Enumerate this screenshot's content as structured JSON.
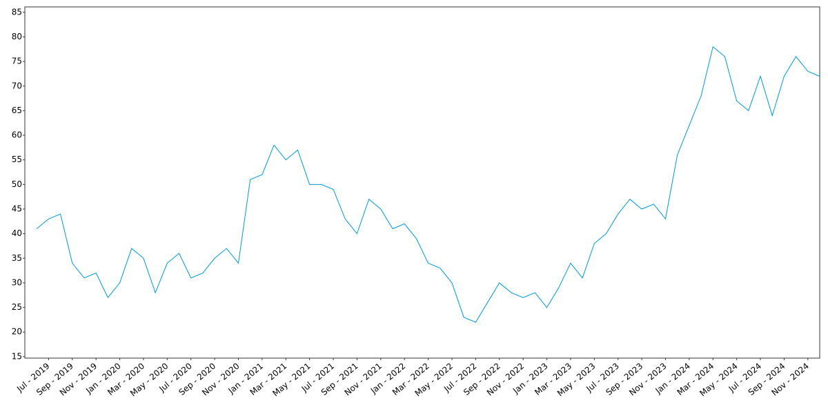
{
  "chart_data": {
    "type": "line",
    "x": [
      "2019-06",
      "2019-07",
      "2019-08",
      "2019-09",
      "2019-10",
      "2019-11",
      "2019-12",
      "2020-01",
      "2020-02",
      "2020-03",
      "2020-04",
      "2020-05",
      "2020-06",
      "2020-07",
      "2020-08",
      "2020-09",
      "2020-10",
      "2020-11",
      "2020-12",
      "2021-01",
      "2021-02",
      "2021-03",
      "2021-04",
      "2021-05",
      "2021-06",
      "2021-07",
      "2021-08",
      "2021-09",
      "2021-10",
      "2021-11",
      "2021-12",
      "2022-01",
      "2022-02",
      "2022-03",
      "2022-04",
      "2022-05",
      "2022-06",
      "2022-07",
      "2022-08",
      "2022-09",
      "2022-10",
      "2022-11",
      "2022-12",
      "2023-01",
      "2023-02",
      "2023-03",
      "2023-04",
      "2023-05",
      "2023-06",
      "2023-07",
      "2023-08",
      "2023-09",
      "2023-10",
      "2023-11",
      "2023-12",
      "2024-01",
      "2024-02",
      "2024-03",
      "2024-04",
      "2024-05",
      "2024-06",
      "2024-07",
      "2024-08",
      "2024-09",
      "2024-10",
      "2024-11",
      "2024-12"
    ],
    "series": [
      {
        "color": "#0096d6",
        "values": [
          41,
          43,
          44,
          34,
          31,
          32,
          27,
          30,
          37,
          35,
          28,
          34,
          36,
          31,
          32,
          35,
          37,
          34,
          51,
          52,
          58,
          55,
          57,
          50,
          50,
          49,
          43,
          40,
          47,
          45,
          41,
          42,
          39,
          34,
          33,
          30,
          23,
          22,
          26,
          30,
          28,
          27,
          28,
          25,
          29,
          34,
          31,
          38,
          40,
          44,
          47,
          45,
          46,
          43,
          56,
          62,
          68,
          78,
          76,
          67,
          65,
          72,
          64,
          72,
          76,
          73,
          72
        ]
      }
    ],
    "xlim": [
      "2019-05",
      "2024-12"
    ],
    "xticks": [
      {
        "value": "2019-07",
        "label": "Jul - 2019"
      },
      {
        "value": "2019-09",
        "label": "Sep - 2019"
      },
      {
        "value": "2019-11",
        "label": "Nov - 2019"
      },
      {
        "value": "2020-01",
        "label": "Jan - 2020"
      },
      {
        "value": "2020-03",
        "label": "Mar - 2020"
      },
      {
        "value": "2020-05",
        "label": "May - 2020"
      },
      {
        "value": "2020-07",
        "label": "Jul - 2020"
      },
      {
        "value": "2020-09",
        "label": "Sep - 2020"
      },
      {
        "value": "2020-11",
        "label": "Nov - 2020"
      },
      {
        "value": "2021-01",
        "label": "Jan - 2021"
      },
      {
        "value": "2021-03",
        "label": "Mar - 2021"
      },
      {
        "value": "2021-05",
        "label": "May - 2021"
      },
      {
        "value": "2021-07",
        "label": "Jul - 2021"
      },
      {
        "value": "2021-09",
        "label": "Sep - 2021"
      },
      {
        "value": "2021-11",
        "label": "Nov - 2021"
      },
      {
        "value": "2022-01",
        "label": "Jan - 2022"
      },
      {
        "value": "2022-03",
        "label": "Mar - 2022"
      },
      {
        "value": "2022-05",
        "label": "May - 2022"
      },
      {
        "value": "2022-07",
        "label": "Jul - 2022"
      },
      {
        "value": "2022-09",
        "label": "Sep - 2022"
      },
      {
        "value": "2022-11",
        "label": "Nov - 2022"
      },
      {
        "value": "2023-01",
        "label": "Jan - 2023"
      },
      {
        "value": "2023-03",
        "label": "Mar - 2023"
      },
      {
        "value": "2023-05",
        "label": "May - 2023"
      },
      {
        "value": "2023-07",
        "label": "Jul - 2023"
      },
      {
        "value": "2023-09",
        "label": "Sep - 2023"
      },
      {
        "value": "2023-11",
        "label": "Nov - 2023"
      },
      {
        "value": "2024-01",
        "label": "Jan - 2024"
      },
      {
        "value": "2024-03",
        "label": "Mar - 2024"
      },
      {
        "value": "2024-05",
        "label": "May - 2024"
      },
      {
        "value": "2024-07",
        "label": "Jul - 2024"
      },
      {
        "value": "2024-09",
        "label": "Sep - 2024"
      },
      {
        "value": "2024-11",
        "label": "Nov - 2024"
      }
    ],
    "ylim": [
      14.7,
      86.1
    ],
    "yticks": [
      15,
      20,
      25,
      30,
      35,
      40,
      45,
      50,
      55,
      60,
      65,
      70,
      75,
      80,
      85
    ]
  }
}
